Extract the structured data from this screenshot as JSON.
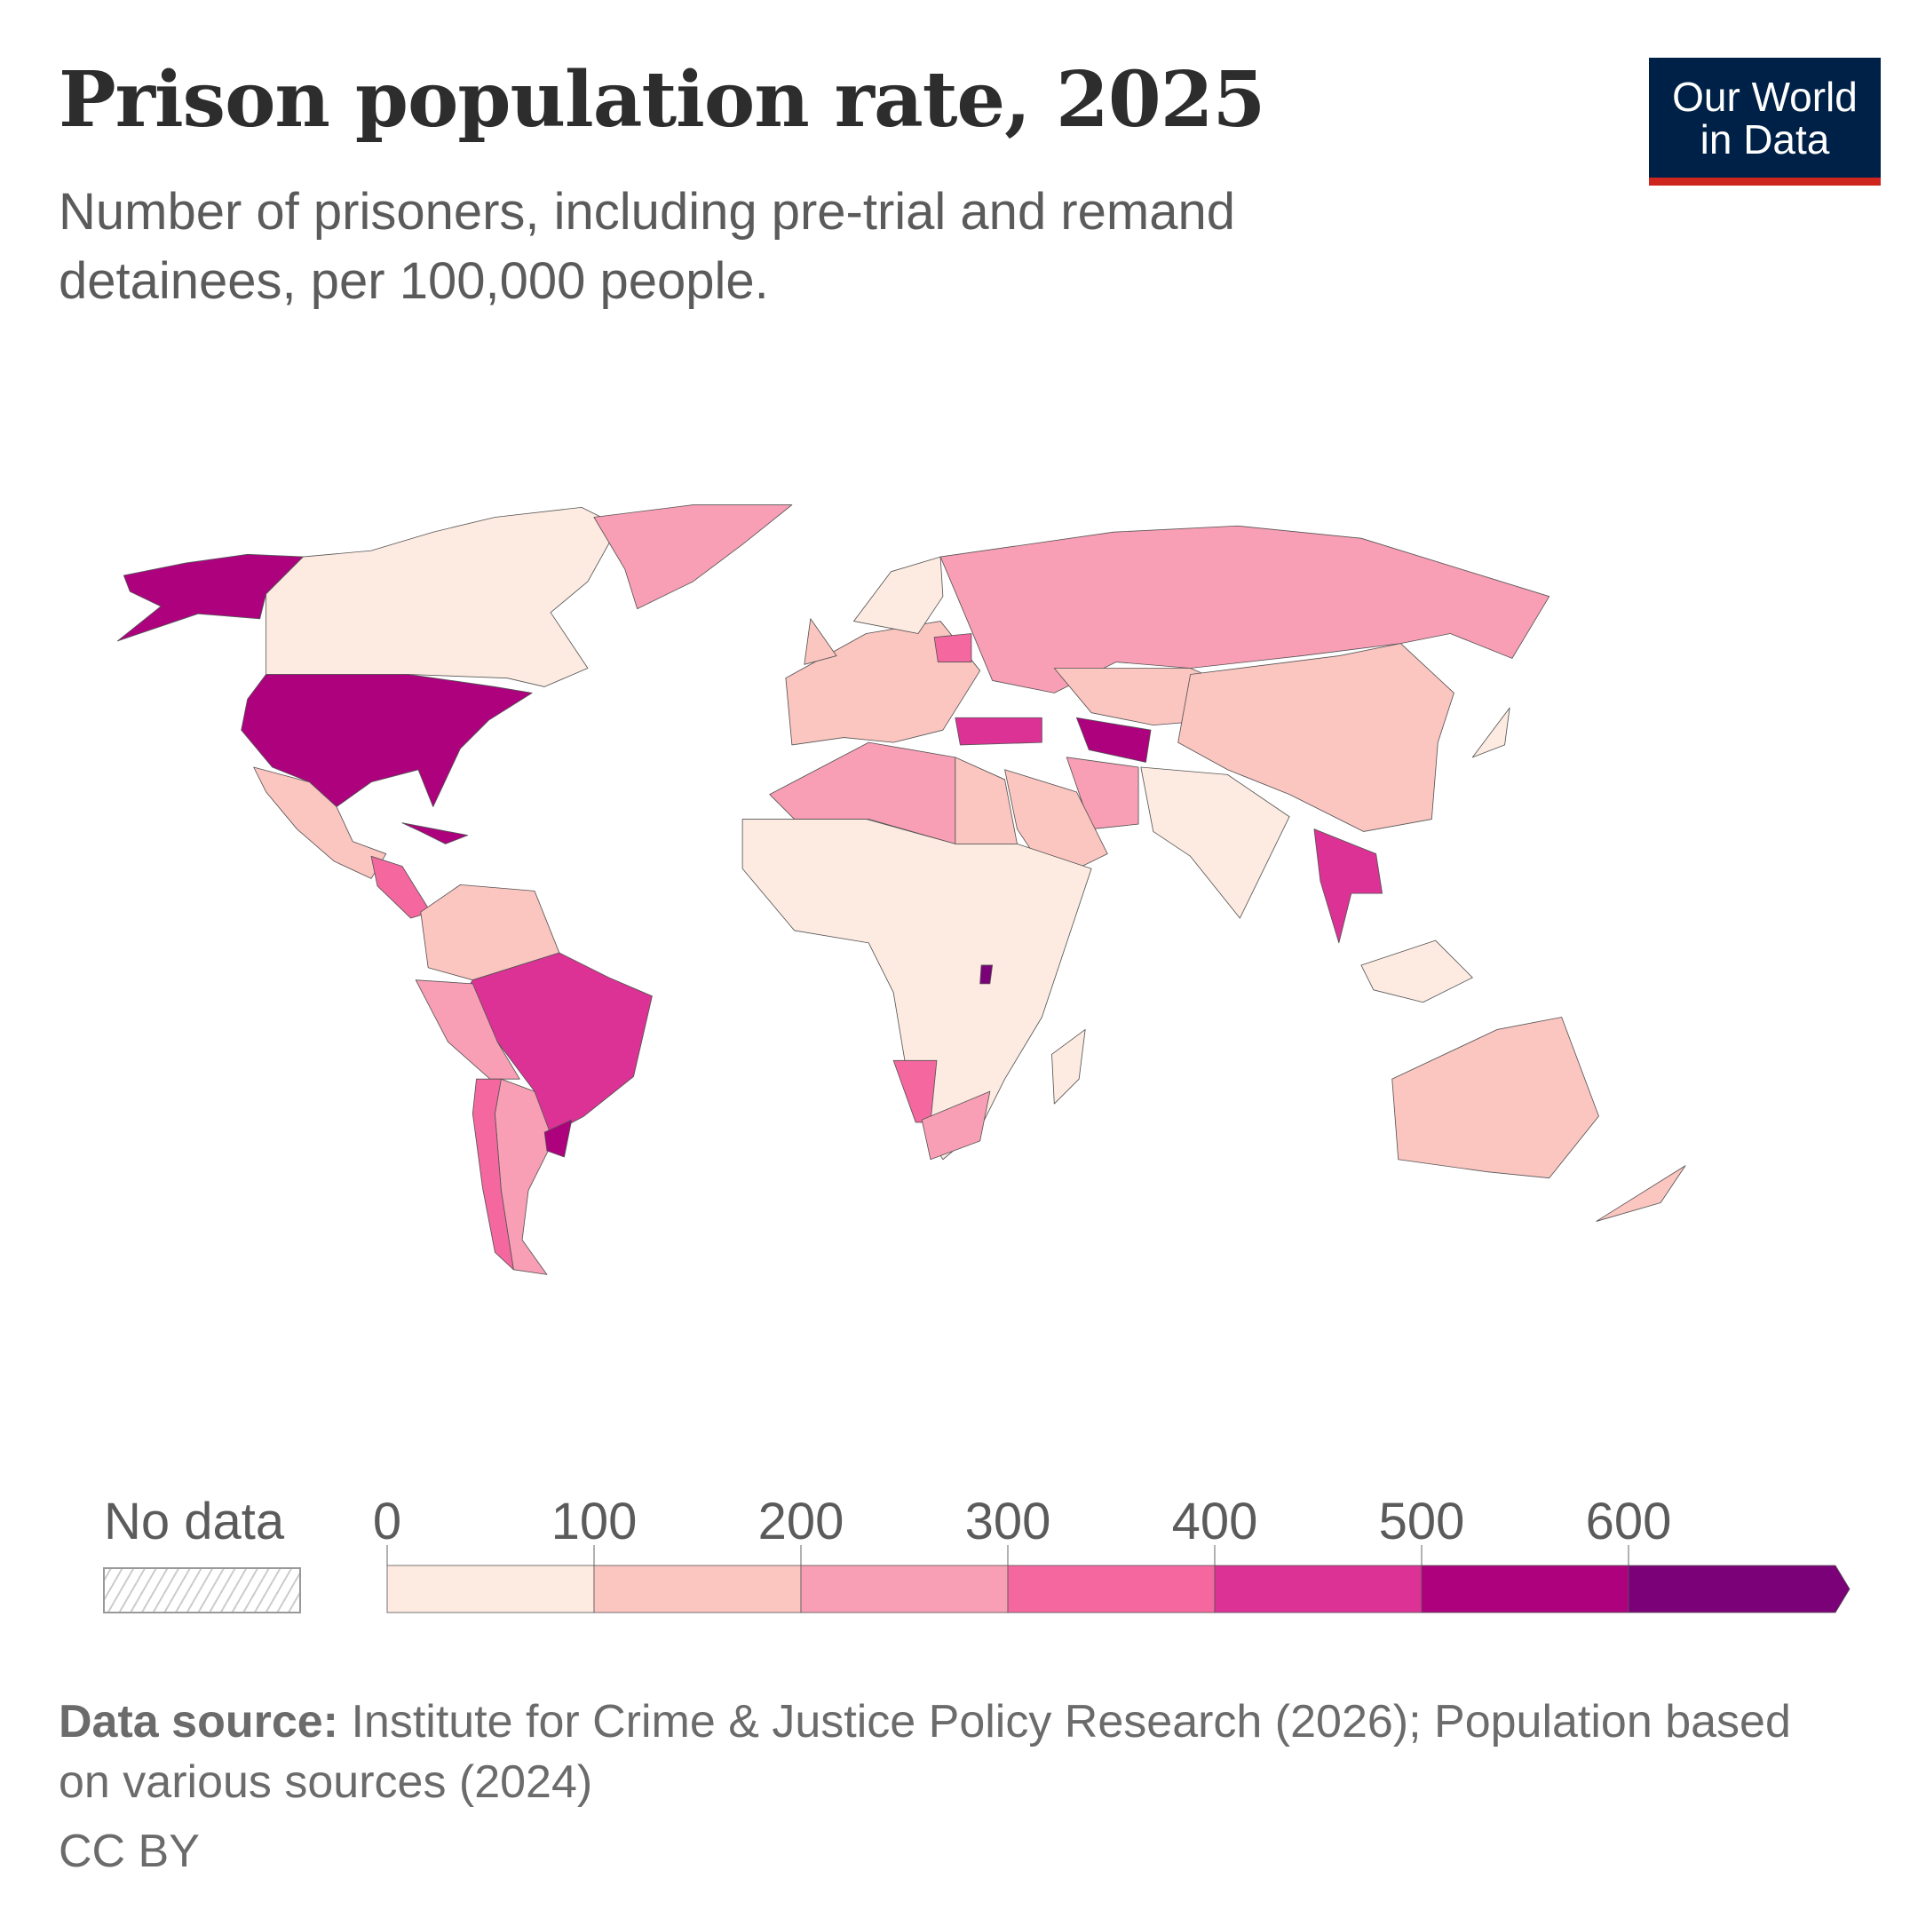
{
  "header": {
    "title": "Prison population rate, 2025",
    "subtitle": "Number of prisoners, including pre-trial and remand detainees, per 100,000 people."
  },
  "logo": {
    "line1": "Our World",
    "line2": "in Data",
    "bg_color": "#002147",
    "accent_color": "#ce261e"
  },
  "chart_data": {
    "type": "choropleth-map",
    "title": "Prison population rate, 2025",
    "legend": {
      "no_data_label": "No data",
      "tick_labels": [
        "0",
        "100",
        "200",
        "300",
        "400",
        "500",
        "600"
      ],
      "bins": [
        {
          "range": [
            0,
            100
          ],
          "color": "#fdebe1"
        },
        {
          "range": [
            100,
            200
          ],
          "color": "#fbc5c0"
        },
        {
          "range": [
            200,
            300
          ],
          "color": "#f99fb5"
        },
        {
          "range": [
            300,
            400
          ],
          "color": "#f5679f"
        },
        {
          "range": [
            400,
            500
          ],
          "color": "#dc3295"
        },
        {
          "range": [
            500,
            600
          ],
          "color": "#ad017e"
        },
        {
          "range": [
            600,
            null
          ],
          "color": "#7a0177"
        }
      ],
      "placement": "bottom"
    },
    "regions": [
      {
        "name": "Alaska (United States)",
        "bin": 5
      },
      {
        "name": "Canada",
        "bin": 0
      },
      {
        "name": "Greenland",
        "bin": 2
      },
      {
        "name": "United States",
        "bin": 5
      },
      {
        "name": "Mexico",
        "bin": 1
      },
      {
        "name": "Central America",
        "bin": 3
      },
      {
        "name": "Cuba",
        "bin": 5
      },
      {
        "name": "Colombia / Venezuela",
        "bin": 1
      },
      {
        "name": "Brazil",
        "bin": 4
      },
      {
        "name": "Peru / Bolivia",
        "bin": 2
      },
      {
        "name": "Argentina",
        "bin": 2
      },
      {
        "name": "Chile",
        "bin": 3
      },
      {
        "name": "Uruguay",
        "bin": 5
      },
      {
        "name": "Western Europe",
        "bin": 1
      },
      {
        "name": "Scandinavia",
        "bin": 0
      },
      {
        "name": "United Kingdom",
        "bin": 1
      },
      {
        "name": "Belarus",
        "bin": 3
      },
      {
        "name": "Russia",
        "bin": 2
      },
      {
        "name": "Turkey",
        "bin": 4
      },
      {
        "name": "Turkmenistan",
        "bin": 5
      },
      {
        "name": "Iran",
        "bin": 2
      },
      {
        "name": "Saudi Arabia",
        "bin": 1
      },
      {
        "name": "Central Asia",
        "bin": 1
      },
      {
        "name": "China",
        "bin": 1
      },
      {
        "name": "India",
        "bin": 0
      },
      {
        "name": "Thailand",
        "bin": 4
      },
      {
        "name": "Indonesia",
        "bin": 0
      },
      {
        "name": "North Africa",
        "bin": 2
      },
      {
        "name": "Egypt",
        "bin": 1
      },
      {
        "name": "Sub-Saharan Africa",
        "bin": 0
      },
      {
        "name": "Namibia",
        "bin": 3
      },
      {
        "name": "South Africa",
        "bin": 2
      },
      {
        "name": "Rwanda",
        "bin": 6
      },
      {
        "name": "Madagascar",
        "bin": 0
      },
      {
        "name": "Japan",
        "bin": 0
      },
      {
        "name": "Australia",
        "bin": 1
      },
      {
        "name": "New Zealand",
        "bin": 1
      }
    ]
  },
  "footer": {
    "source_label": "Data source:",
    "source_text": " Institute for Crime & Justice Policy Research (2026); Population based on various sources (2024)",
    "license": "CC BY"
  }
}
